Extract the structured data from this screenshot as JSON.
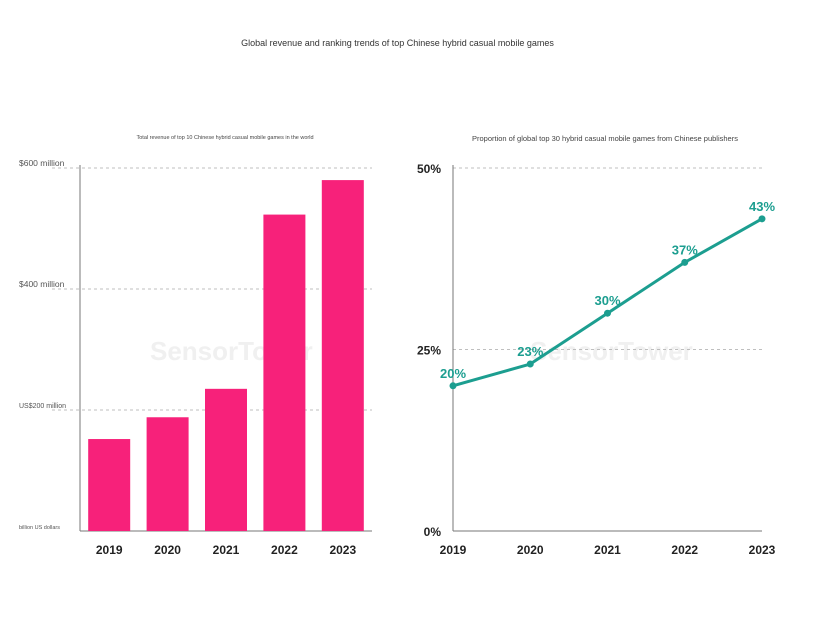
{
  "title": "Global revenue and ranking trends of top Chinese hybrid casual mobile games",
  "colors": {
    "bar": "#f7217a",
    "line": "#1c9e90",
    "grid": "#aaaaaa",
    "axis": "#777777"
  },
  "watermark": "SensorTower",
  "chart_data": [
    {
      "type": "bar",
      "title": "Total revenue of top 10 Chinese hybrid casual mobile games in the world",
      "categories": [
        "2019",
        "2020",
        "2021",
        "2022",
        "2023"
      ],
      "values": [
        152,
        188,
        235,
        523,
        580
      ],
      "ylim": [
        0,
        600
      ],
      "yticks": [
        {
          "value": 600,
          "label": "$600 million"
        },
        {
          "value": 400,
          "label": "$400 million"
        },
        {
          "value": 200,
          "label": "US$200 million"
        },
        {
          "value": 0,
          "label": "billion US dollars"
        }
      ],
      "grid": true
    },
    {
      "type": "line",
      "title": "Proportion of global top 30 hybrid casual mobile games from Chinese publishers",
      "x": [
        "2019",
        "2020",
        "2021",
        "2022",
        "2023"
      ],
      "values": [
        20,
        23,
        30,
        37,
        43
      ],
      "data_labels": [
        "20%",
        "23%",
        "30%",
        "37%",
        "43%"
      ],
      "ylim": [
        0,
        50
      ],
      "yticks": [
        {
          "value": 50,
          "label": "50%"
        },
        {
          "value": 25,
          "label": "25%"
        },
        {
          "value": 0,
          "label": "0%"
        }
      ],
      "grid": true
    }
  ]
}
